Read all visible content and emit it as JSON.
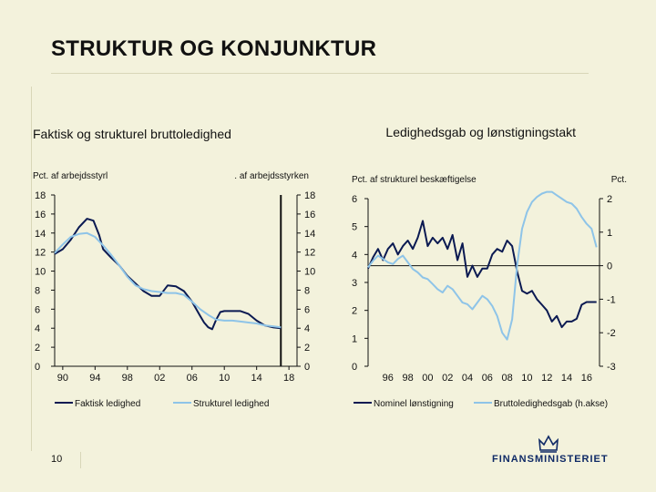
{
  "slide": {
    "title": "STRUKTUR OG KONJUNKTUR",
    "page_number": "10"
  },
  "logo": {
    "text": "FINANSMINISTERIET"
  },
  "colors": {
    "dark_series": "#0b1a52",
    "light_series": "#8ec4e8",
    "background": "#f3f2dc",
    "axis": "#111111"
  },
  "chart_data": [
    {
      "type": "line",
      "title": "Faktisk og strukturel bruttoledighed",
      "ylabel_left": "Pct. af arbejdsstyrl",
      "ylabel_right": ". af arbejdsstyrken",
      "ylim": [
        0,
        18
      ],
      "y_ticks": [
        "0",
        "2",
        "4",
        "6",
        "8",
        "10",
        "12",
        "14",
        "16",
        "18"
      ],
      "x_tick_labels": [
        "90",
        "94",
        "98",
        "02",
        "06",
        "10",
        "14",
        "18"
      ],
      "xlim": [
        1989,
        2019
      ],
      "x_tick_values": [
        1990,
        1994,
        1998,
        2002,
        2006,
        2010,
        2014,
        2018
      ],
      "vline_x": 2017,
      "legend": [
        "Faktisk ledighed",
        "Strukturel ledighed"
      ],
      "series": [
        {
          "name": "Faktisk ledighed",
          "color": "#0b1a52",
          "x": [
            1989,
            1990,
            1991,
            1992,
            1993,
            1993.8,
            1994.5,
            1995,
            1996,
            1997,
            1998,
            1999,
            2000,
            2001,
            2002,
            2003,
            2004,
            2005,
            2006,
            2007,
            2007.5,
            2008,
            2008.5,
            2009,
            2009.5,
            2010,
            2011,
            2012,
            2013,
            2014,
            2015,
            2016,
            2017
          ],
          "y": [
            11.8,
            12.3,
            13.3,
            14.6,
            15.5,
            15.3,
            13.8,
            12.3,
            11.4,
            10.6,
            9.5,
            8.7,
            7.9,
            7.4,
            7.4,
            8.5,
            8.4,
            7.9,
            6.8,
            5.3,
            4.6,
            4.1,
            3.9,
            4.9,
            5.7,
            5.8,
            5.8,
            5.8,
            5.5,
            4.8,
            4.3,
            4.1,
            4.0
          ]
        },
        {
          "name": "Strukturel ledighed",
          "color": "#8ec4e8",
          "x": [
            1989,
            1990,
            1991,
            1992,
            1993,
            1994,
            1995,
            1996,
            1997,
            1998,
            1999,
            2000,
            2001,
            2002,
            2003,
            2004,
            2005,
            2006,
            2007,
            2008,
            2009,
            2010,
            2011,
            2012,
            2013,
            2014,
            2015,
            2016,
            2017
          ],
          "y": [
            11.9,
            12.8,
            13.6,
            13.9,
            14.0,
            13.6,
            12.7,
            11.7,
            10.6,
            9.4,
            8.5,
            8.1,
            7.9,
            7.8,
            7.7,
            7.7,
            7.5,
            6.8,
            6.0,
            5.4,
            4.9,
            4.8,
            4.8,
            4.7,
            4.6,
            4.5,
            4.3,
            4.2,
            4.1
          ]
        }
      ]
    },
    {
      "type": "line",
      "title": "Ledighedsgab og lønstigningstakt",
      "ylabel_left": "Pct. af strukturel beskæftigelse",
      "ylabel_right": "Pct.",
      "ylim_left": [
        0,
        6
      ],
      "ylim_right": [
        -3,
        2
      ],
      "y_ticks_left": [
        "0",
        "1",
        "2",
        "3",
        "4",
        "5",
        "6"
      ],
      "y_ticks_right": [
        "-3",
        "-2",
        "-1",
        "0",
        "1",
        "2"
      ],
      "x_tick_labels": [
        "96",
        "98",
        "00",
        "02",
        "04",
        "06",
        "08",
        "10",
        "12",
        "14",
        "16"
      ],
      "xlim": [
        1994,
        2017.3
      ],
      "x_tick_values": [
        1996,
        1998,
        2000,
        2002,
        2004,
        2006,
        2008,
        2010,
        2012,
        2014,
        2016
      ],
      "legend": [
        "Nominel lønstigning",
        "Bruttoledighedsgab (h.akse)"
      ],
      "series": [
        {
          "name": "Nominel lønstigning",
          "axis": "left",
          "color": "#0b1a52",
          "x": [
            1994.0,
            1994.5,
            1995.0,
            1995.5,
            1996.0,
            1996.5,
            1997.0,
            1997.5,
            1998.0,
            1998.5,
            1999.0,
            1999.5,
            2000.0,
            2000.5,
            2001.0,
            2001.5,
            2002.0,
            2002.5,
            2003.0,
            2003.5,
            2004.0,
            2004.5,
            2005.0,
            2005.5,
            2006.0,
            2006.5,
            2007.0,
            2007.5,
            2008.0,
            2008.5,
            2009.0,
            2009.5,
            2010.0,
            2010.5,
            2011.0,
            2011.5,
            2012.0,
            2012.5,
            2013.0,
            2013.5,
            2014.0,
            2014.5,
            2015.0,
            2015.5,
            2016.0,
            2016.5,
            2017.0
          ],
          "y": [
            3.5,
            3.9,
            4.2,
            3.8,
            4.2,
            4.4,
            4.0,
            4.3,
            4.5,
            4.2,
            4.6,
            5.2,
            4.3,
            4.6,
            4.4,
            4.6,
            4.2,
            4.7,
            3.8,
            4.4,
            3.2,
            3.6,
            3.2,
            3.5,
            3.5,
            4.0,
            4.2,
            4.1,
            4.5,
            4.3,
            3.4,
            2.7,
            2.6,
            2.7,
            2.4,
            2.2,
            2.0,
            1.6,
            1.8,
            1.4,
            1.6,
            1.6,
            1.7,
            2.2,
            2.3,
            2.3,
            2.3
          ]
        },
        {
          "name": "Bruttoledighedsgab (h.akse)",
          "axis": "right",
          "color": "#8ec4e8",
          "x": [
            1994.0,
            1994.5,
            1995.0,
            1995.5,
            1996.0,
            1996.5,
            1997.0,
            1997.5,
            1998.0,
            1998.5,
            1999.0,
            1999.5,
            2000.0,
            2000.5,
            2001.0,
            2001.5,
            2002.0,
            2002.5,
            2003.0,
            2003.5,
            2004.0,
            2004.5,
            2005.0,
            2005.5,
            2006.0,
            2006.5,
            2007.0,
            2007.5,
            2008.0,
            2008.5,
            2009.0,
            2009.5,
            2010.0,
            2010.5,
            2011.0,
            2011.5,
            2012.0,
            2012.5,
            2013.0,
            2013.5,
            2014.0,
            2014.5,
            2015.0,
            2015.5,
            2016.0,
            2016.5,
            2017.0
          ],
          "y": [
            -0.05,
            0.15,
            0.3,
            0.2,
            0.1,
            0.05,
            0.2,
            0.3,
            0.1,
            -0.1,
            -0.2,
            -0.35,
            -0.4,
            -0.55,
            -0.7,
            -0.8,
            -0.6,
            -0.7,
            -0.9,
            -1.1,
            -1.15,
            -1.3,
            -1.1,
            -0.9,
            -1.0,
            -1.2,
            -1.5,
            -2.0,
            -2.2,
            -1.6,
            0.0,
            1.1,
            1.6,
            1.9,
            2.05,
            2.15,
            2.2,
            2.2,
            2.1,
            2.0,
            1.9,
            1.85,
            1.7,
            1.45,
            1.25,
            1.1,
            0.55
          ]
        }
      ]
    }
  ]
}
